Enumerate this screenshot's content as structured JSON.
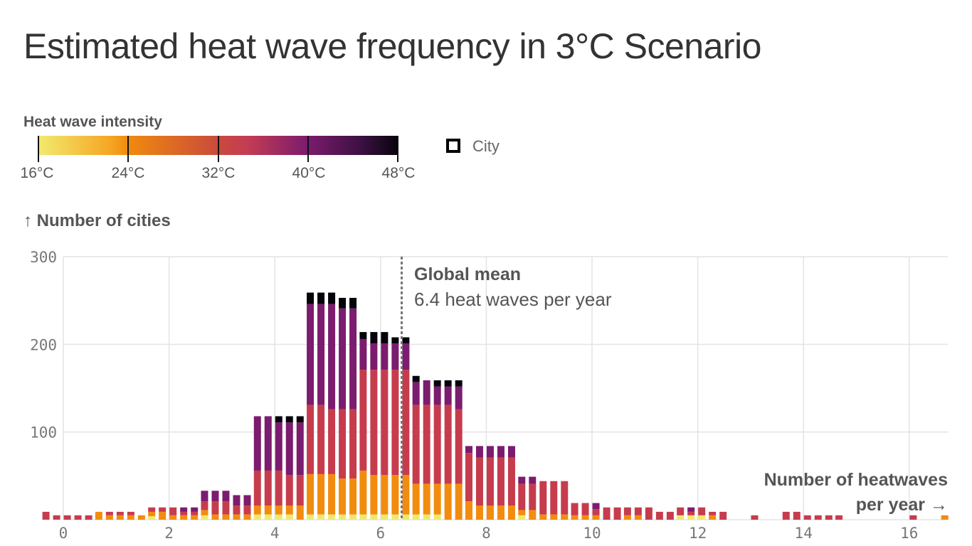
{
  "title": "Estimated heat wave frequency in 3°C Scenario",
  "legend": {
    "title": "Heat wave intensity",
    "ticks": [
      "16°C",
      "24°C",
      "32°C",
      "40°C",
      "48°C"
    ],
    "city_label": "City",
    "city_icon": "square-outline-icon"
  },
  "colors": {
    "yellow": "#f0e86e",
    "orange": "#f28c0f",
    "red": "#c63c4d",
    "purple": "#7b1c6e",
    "black": "#05040b",
    "grid": "#e3e3e3",
    "mean_line": "#777777"
  },
  "annotation": {
    "head": "Global mean",
    "sub": "6.4 heat waves per year"
  },
  "chart_data": {
    "type": "bar",
    "title": "Estimated heat wave frequency in 3°C Scenario",
    "ylabel": "↑ Number of cities",
    "xlabel_line1": "Number of heatwaves",
    "xlabel_line2": "per year →",
    "ylim": [
      0,
      300
    ],
    "xlim": [
      -0.5,
      16.7
    ],
    "yticks": [
      "0",
      "100",
      "200",
      "300"
    ],
    "yticks_values": [
      0,
      100,
      200,
      300
    ],
    "xticks": [
      "0",
      "2",
      "4",
      "6",
      "8",
      "10",
      "12",
      "14",
      "16"
    ],
    "xticks_values": [
      0,
      2,
      4,
      6,
      8,
      10,
      12,
      14,
      16
    ],
    "grid": true,
    "mean_value": 6.4,
    "stack_order": [
      "yellow",
      "orange",
      "red",
      "purple",
      "black"
    ],
    "stack_bands": [
      "16–24°C",
      "24–32°C",
      "32–40°C",
      "40–48°C",
      "48°C+"
    ],
    "groups": [
      {
        "x": 0,
        "columns": [
          [
            0,
            0,
            9,
            0,
            0
          ],
          [
            0,
            0,
            5,
            0,
            0
          ],
          [
            0,
            0,
            5,
            0,
            0
          ],
          [
            0,
            0,
            5,
            0,
            0
          ],
          [
            0,
            0,
            5,
            0,
            0
          ]
        ]
      },
      {
        "x": 1,
        "columns": [
          [
            0,
            9,
            0,
            0,
            0
          ],
          [
            0,
            5,
            4,
            0,
            0
          ],
          [
            0,
            5,
            4,
            0,
            0
          ],
          [
            0,
            5,
            4,
            0,
            0
          ],
          [
            0,
            5,
            0,
            0,
            0
          ]
        ]
      },
      {
        "x": 2,
        "columns": [
          [
            4,
            5,
            5,
            0,
            0
          ],
          [
            0,
            9,
            5,
            0,
            0
          ],
          [
            0,
            5,
            9,
            0,
            0
          ],
          [
            0,
            5,
            4,
            5,
            0
          ],
          [
            0,
            5,
            4,
            5,
            0
          ]
        ]
      },
      {
        "x": 3,
        "columns": [
          [
            5,
            6,
            10,
            12,
            0
          ],
          [
            0,
            6,
            15,
            12,
            0
          ],
          [
            0,
            6,
            15,
            12,
            0
          ],
          [
            0,
            6,
            10,
            12,
            0
          ],
          [
            0,
            6,
            10,
            12,
            0
          ]
        ]
      },
      {
        "x": 4,
        "columns": [
          [
            6,
            10,
            40,
            62,
            0
          ],
          [
            6,
            10,
            40,
            62,
            0
          ],
          [
            6,
            10,
            40,
            55,
            7
          ],
          [
            6,
            10,
            35,
            60,
            7
          ],
          [
            0,
            16,
            35,
            60,
            7
          ]
        ]
      },
      {
        "x": 5,
        "columns": [
          [
            6,
            46,
            79,
            115,
            13
          ],
          [
            6,
            46,
            79,
            115,
            13
          ],
          [
            6,
            46,
            74,
            120,
            13
          ],
          [
            6,
            41,
            79,
            115,
            12
          ],
          [
            6,
            41,
            79,
            115,
            12
          ]
        ]
      },
      {
        "x": 6,
        "columns": [
          [
            6,
            50,
            115,
            35,
            8
          ],
          [
            6,
            45,
            120,
            30,
            13
          ],
          [
            6,
            45,
            120,
            30,
            13
          ],
          [
            6,
            45,
            120,
            30,
            7
          ],
          [
            6,
            45,
            120,
            30,
            7
          ]
        ]
      },
      {
        "x": 7,
        "columns": [
          [
            6,
            35,
            90,
            26,
            7
          ],
          [
            6,
            35,
            90,
            28,
            0
          ],
          [
            6,
            35,
            90,
            21,
            7
          ],
          [
            0,
            41,
            90,
            21,
            7
          ],
          [
            0,
            41,
            85,
            26,
            7
          ]
        ]
      },
      {
        "x": 8,
        "columns": [
          [
            0,
            21,
            55,
            8,
            0
          ],
          [
            0,
            16,
            55,
            13,
            0
          ],
          [
            0,
            16,
            55,
            13,
            0
          ],
          [
            0,
            16,
            55,
            13,
            0
          ],
          [
            0,
            16,
            55,
            13,
            0
          ]
        ]
      },
      {
        "x": 9,
        "columns": [
          [
            5,
            6,
            30,
            8,
            0
          ],
          [
            0,
            11,
            30,
            8,
            0
          ],
          [
            0,
            6,
            38,
            0,
            0
          ],
          [
            0,
            6,
            38,
            0,
            0
          ],
          [
            0,
            6,
            38,
            0,
            0
          ]
        ]
      },
      {
        "x": 10,
        "columns": [
          [
            0,
            5,
            14,
            0,
            0
          ],
          [
            0,
            5,
            14,
            0,
            0
          ],
          [
            0,
            5,
            7,
            7,
            0
          ],
          [
            0,
            0,
            14,
            0,
            0
          ],
          [
            0,
            0,
            14,
            0,
            0
          ]
        ]
      },
      {
        "x": 11,
        "columns": [
          [
            0,
            5,
            9,
            0,
            0
          ],
          [
            0,
            5,
            9,
            0,
            0
          ],
          [
            0,
            0,
            14,
            0,
            0
          ],
          [
            0,
            0,
            9,
            0,
            0
          ],
          [
            0,
            0,
            9,
            0,
            0
          ]
        ]
      },
      {
        "x": 12,
        "columns": [
          [
            5,
            0,
            9,
            0,
            0
          ],
          [
            5,
            0,
            4,
            5,
            0
          ],
          [
            5,
            0,
            9,
            0,
            0
          ],
          [
            0,
            5,
            4,
            0,
            0
          ],
          [
            0,
            0,
            9,
            0,
            0
          ]
        ]
      },
      {
        "x": 13,
        "columns": [
          [
            0,
            0,
            0,
            0,
            0
          ],
          [
            0,
            0,
            0,
            0,
            0
          ],
          [
            0,
            0,
            5,
            0,
            0
          ],
          [
            0,
            0,
            0,
            0,
            0
          ],
          [
            0,
            0,
            0,
            0,
            0
          ]
        ]
      },
      {
        "x": 14,
        "columns": [
          [
            0,
            0,
            9,
            0,
            0
          ],
          [
            0,
            0,
            9,
            0,
            0
          ],
          [
            0,
            0,
            5,
            0,
            0
          ],
          [
            0,
            0,
            5,
            0,
            0
          ],
          [
            0,
            0,
            5,
            0,
            0
          ]
        ]
      },
      {
        "x": 15,
        "columns": [
          [
            0,
            0,
            5,
            0,
            0
          ],
          [
            0,
            0,
            0,
            0,
            0
          ],
          [
            0,
            0,
            0,
            0,
            0
          ],
          [
            0,
            0,
            0,
            0,
            0
          ],
          [
            0,
            0,
            0,
            0,
            0
          ]
        ]
      },
      {
        "x": 16,
        "columns": [
          [
            0,
            0,
            0,
            0,
            0
          ],
          [
            0,
            0,
            0,
            0,
            0
          ],
          [
            0,
            0,
            5,
            0,
            0
          ],
          [
            0,
            0,
            0,
            0,
            0
          ],
          [
            0,
            0,
            0,
            0,
            0
          ]
        ]
      },
      {
        "x": 17,
        "columns": [
          [
            0,
            5,
            0,
            0,
            0
          ],
          [
            0,
            0,
            0,
            0,
            0
          ],
          [
            0,
            0,
            0,
            0,
            0
          ],
          [
            0,
            0,
            0,
            0,
            0
          ],
          [
            0,
            0,
            0,
            0,
            0
          ]
        ]
      }
    ]
  }
}
